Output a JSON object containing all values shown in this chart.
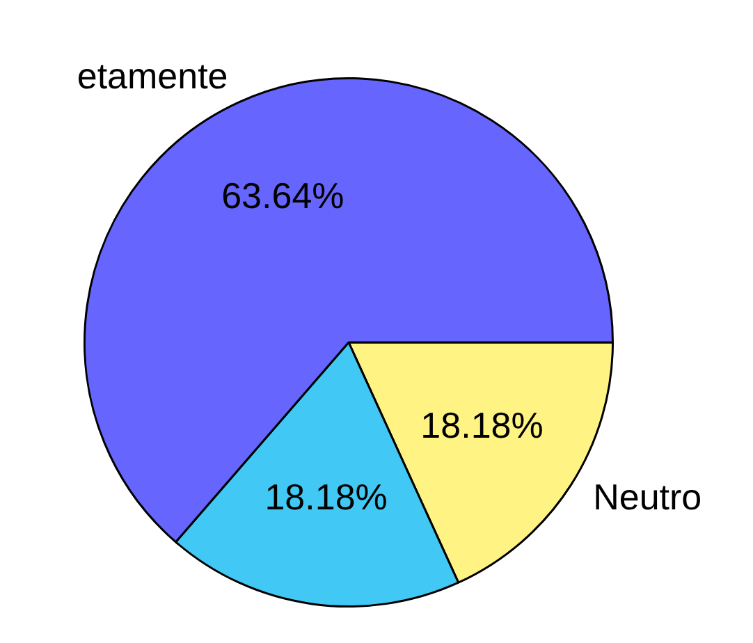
{
  "chart_data": {
    "type": "pie",
    "categories": [
      "Neutro",
      null,
      "etamente"
    ],
    "values": [
      18.18,
      18.18,
      63.64
    ],
    "colors": [
      "#fff384",
      "#42c8f4",
      "#6666ff"
    ],
    "value_labels": [
      "18.18%",
      "18.18%",
      "63.64%"
    ],
    "legend": false
  }
}
